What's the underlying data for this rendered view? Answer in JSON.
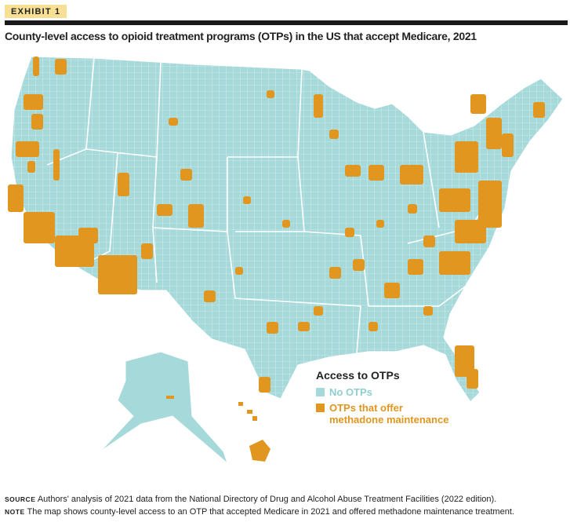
{
  "exhibit_label": "EXHIBIT 1",
  "title": "County-level access to opioid treatment programs (OTPs) in the US that accept Medicare, 2021",
  "legend": {
    "title": "Access to OTPs",
    "items": [
      {
        "label": "No OTPs",
        "color": "#a6d9d9"
      },
      {
        "label": "OTPs that offer methadone maintenance",
        "line1": "OTPs that offer",
        "line2": "methadone maintenance",
        "color": "#e0961f"
      }
    ]
  },
  "source": {
    "label": "SOURCE",
    "text": "Authors' analysis of 2021 data from the National Directory of Drug and Alcohol Abuse Treatment Facilities (2022 edition)."
  },
  "note": {
    "label": "NOTE",
    "text": "The map shows county-level access to an OTP that accepted Medicare in 2021 and offered methadone maintenance treatment."
  }
}
